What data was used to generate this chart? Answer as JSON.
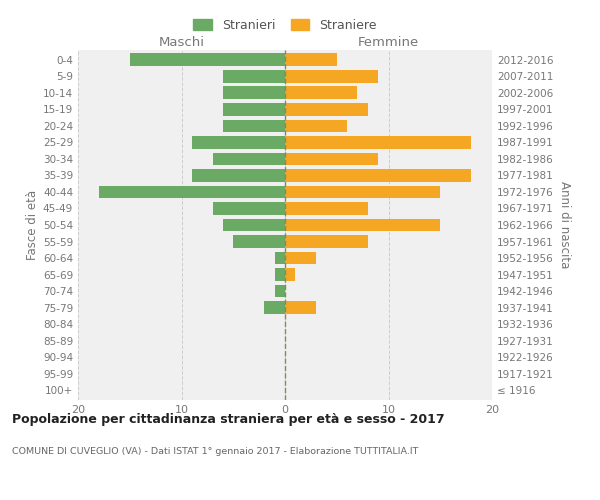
{
  "age_groups": [
    "100+",
    "95-99",
    "90-94",
    "85-89",
    "80-84",
    "75-79",
    "70-74",
    "65-69",
    "60-64",
    "55-59",
    "50-54",
    "45-49",
    "40-44",
    "35-39",
    "30-34",
    "25-29",
    "20-24",
    "15-19",
    "10-14",
    "5-9",
    "0-4"
  ],
  "birth_years": [
    "≤ 1916",
    "1917-1921",
    "1922-1926",
    "1927-1931",
    "1932-1936",
    "1937-1941",
    "1942-1946",
    "1947-1951",
    "1952-1956",
    "1957-1961",
    "1962-1966",
    "1967-1971",
    "1972-1976",
    "1977-1981",
    "1982-1986",
    "1987-1991",
    "1992-1996",
    "1997-2001",
    "2002-2006",
    "2007-2011",
    "2012-2016"
  ],
  "maschi": [
    0,
    0,
    0,
    0,
    0,
    2,
    1,
    1,
    1,
    5,
    6,
    7,
    18,
    9,
    7,
    9,
    6,
    6,
    6,
    6,
    15
  ],
  "femmine": [
    0,
    0,
    0,
    0,
    0,
    3,
    0,
    1,
    3,
    8,
    15,
    8,
    15,
    18,
    9,
    18,
    6,
    8,
    7,
    9,
    5
  ],
  "color_maschi": "#6aaa64",
  "color_femmine": "#f5a623",
  "color_grid": "#cccccc",
  "color_center_line": "#888860",
  "xlim": 20,
  "title": "Popolazione per cittadinanza straniera per età e sesso - 2017",
  "subtitle": "COMUNE DI CUVEGLIO (VA) - Dati ISTAT 1° gennaio 2017 - Elaborazione TUTTITALIA.IT",
  "ylabel_left": "Fasce di età",
  "ylabel_right": "Anni di nascita",
  "label_maschi_header": "Maschi",
  "label_femmine_header": "Femmine",
  "legend_stranieri": "Stranieri",
  "legend_straniere": "Straniere",
  "bg_color": "#ffffff",
  "plot_bg_color": "#f0f0f0"
}
